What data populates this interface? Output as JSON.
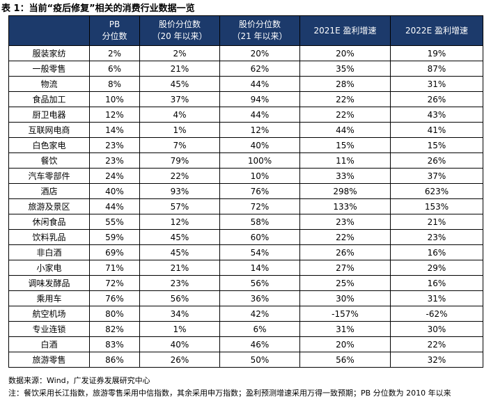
{
  "title": "表 1：当前“疫后修复”相关的消费行业数据一览",
  "table": {
    "header": [
      [
        "PB",
        "分位数"
      ],
      [
        "股价分位数",
        "（20 年以来）"
      ],
      [
        "股价分位数",
        "（21 年以来）"
      ],
      [
        "2021E 盈利增速"
      ],
      [
        "2022E 盈利增速"
      ]
    ],
    "rows": [
      [
        "服装家纺",
        "2%",
        "2%",
        "20%",
        "20%",
        "19%"
      ],
      [
        "一般零售",
        "6%",
        "21%",
        "62%",
        "35%",
        "87%"
      ],
      [
        "物流",
        "8%",
        "45%",
        "44%",
        "28%",
        "31%"
      ],
      [
        "食品加工",
        "10%",
        "37%",
        "94%",
        "22%",
        "26%"
      ],
      [
        "厨卫电器",
        "12%",
        "4%",
        "44%",
        "22%",
        "43%"
      ],
      [
        "互联网电商",
        "14%",
        "1%",
        "12%",
        "44%",
        "41%"
      ],
      [
        "白色家电",
        "23%",
        "7%",
        "40%",
        "15%",
        "15%"
      ],
      [
        "餐饮",
        "23%",
        "79%",
        "100%",
        "11%",
        "26%"
      ],
      [
        "汽车零部件",
        "24%",
        "22%",
        "10%",
        "33%",
        "37%"
      ],
      [
        "酒店",
        "40%",
        "93%",
        "76%",
        "298%",
        "623%"
      ],
      [
        "旅游及景区",
        "44%",
        "57%",
        "72%",
        "133%",
        "153%"
      ],
      [
        "休闲食品",
        "55%",
        "12%",
        "58%",
        "23%",
        "21%"
      ],
      [
        "饮料乳品",
        "59%",
        "45%",
        "60%",
        "22%",
        "23%"
      ],
      [
        "非白酒",
        "69%",
        "45%",
        "54%",
        "26%",
        "16%"
      ],
      [
        "小家电",
        "71%",
        "21%",
        "14%",
        "27%",
        "29%"
      ],
      [
        "调味发酵品",
        "72%",
        "23%",
        "56%",
        "25%",
        "16%"
      ],
      [
        "乘用车",
        "76%",
        "56%",
        "36%",
        "30%",
        "31%"
      ],
      [
        "航空机场",
        "80%",
        "34%",
        "42%",
        "-157%",
        "-62%"
      ],
      [
        "专业连锁",
        "82%",
        "1%",
        "6%",
        "31%",
        "30%"
      ],
      [
        "白酒",
        "83%",
        "40%",
        "46%",
        "20%",
        "22%"
      ],
      [
        "旅游零售",
        "86%",
        "26%",
        "50%",
        "56%",
        "32%"
      ]
    ]
  },
  "notes": [
    "数据来源：Wind，广发证券发展研究中心",
    "注：餐饮采用长江指数，旅游零售采用中信指数，其余采用申万指数；盈利预测增速采用万得一致预期；PB 分位数为 2010 年以来"
  ]
}
